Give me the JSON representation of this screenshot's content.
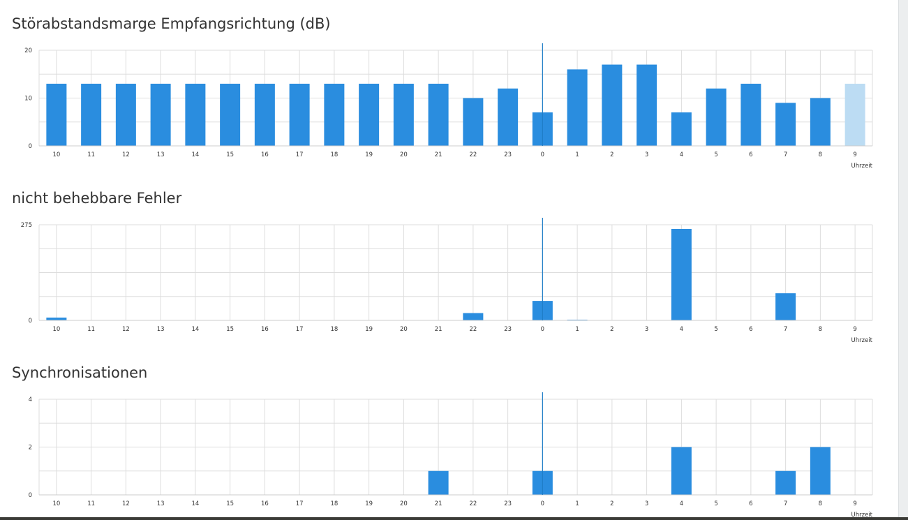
{
  "colors": {
    "bar": "#2a8ddf",
    "bar_current": "#bcdcf3",
    "grid": "#dddddd",
    "now_line": "#1f7dc7",
    "tick_text": "#333333"
  },
  "chart_data": [
    {
      "type": "bar",
      "title": "Störabstandsmarge Empfangsrichtung (dB)",
      "xlabel": "Uhrzeit",
      "ylabel": "",
      "categories": [
        "10",
        "11",
        "12",
        "13",
        "14",
        "15",
        "16",
        "17",
        "18",
        "19",
        "20",
        "21",
        "22",
        "23",
        "0",
        "1",
        "2",
        "3",
        "4",
        "5",
        "6",
        "7",
        "8",
        "9"
      ],
      "values": [
        13,
        13,
        13,
        13,
        13,
        13,
        13,
        13,
        13,
        13,
        13,
        13,
        10,
        12,
        7,
        16,
        17,
        17,
        7,
        12,
        13,
        9,
        10,
        13
      ],
      "ylim": [
        0,
        20
      ],
      "yticks": [
        "0",
        "10",
        "20"
      ],
      "highlight_last": true,
      "grid": true,
      "now_marker_category": "0"
    },
    {
      "type": "bar",
      "title": "nicht behebbare Fehler",
      "xlabel": "Uhrzeit",
      "ylabel": "",
      "categories": [
        "10",
        "11",
        "12",
        "13",
        "14",
        "15",
        "16",
        "17",
        "18",
        "19",
        "20",
        "21",
        "22",
        "23",
        "0",
        "1",
        "2",
        "3",
        "4",
        "5",
        "6",
        "7",
        "8",
        "9"
      ],
      "values": [
        8,
        0,
        0,
        0,
        0,
        0,
        0,
        0,
        0,
        0,
        0,
        0,
        21,
        0,
        56,
        2,
        0,
        0,
        263,
        0,
        0,
        78,
        0,
        0
      ],
      "ylim": [
        0,
        275
      ],
      "yticks": [
        "0",
        "275"
      ],
      "highlight_last": false,
      "grid": true,
      "now_marker_category": "0"
    },
    {
      "type": "bar",
      "title": "Synchronisationen",
      "xlabel": "Uhrzeit",
      "ylabel": "",
      "categories": [
        "10",
        "11",
        "12",
        "13",
        "14",
        "15",
        "16",
        "17",
        "18",
        "19",
        "20",
        "21",
        "22",
        "23",
        "0",
        "1",
        "2",
        "3",
        "4",
        "5",
        "6",
        "7",
        "8",
        "9"
      ],
      "values": [
        0,
        0,
        0,
        0,
        0,
        0,
        0,
        0,
        0,
        0,
        0,
        1,
        0,
        0,
        1,
        0,
        0,
        0,
        2,
        0,
        0,
        1,
        2,
        0
      ],
      "ylim": [
        0,
        4
      ],
      "yticks": [
        "0",
        "2",
        "4"
      ],
      "highlight_last": false,
      "grid": true,
      "now_marker_category": "0"
    }
  ]
}
